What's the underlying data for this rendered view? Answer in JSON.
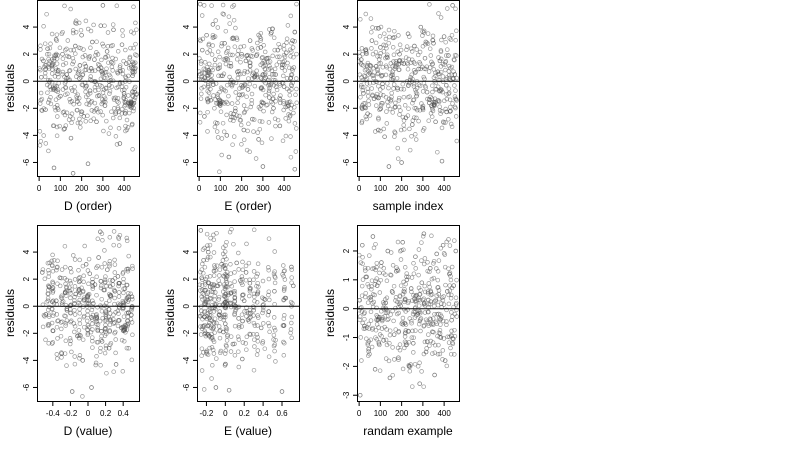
{
  "chart_data": [
    {
      "type": "scatter",
      "xlabel": "D (order)",
      "ylabel": "residuals",
      "xlim": [
        -10,
        470
      ],
      "ylim": [
        -7,
        6
      ],
      "xticks": [
        0,
        100,
        200,
        300,
        400
      ],
      "yticks": [
        -6,
        -4,
        -2,
        0,
        2,
        4
      ],
      "hline": 0,
      "n_points": 460,
      "point_style": "open circle",
      "points": [
        [
          10,
          0.3
        ],
        [
          20,
          1.5
        ],
        [
          30,
          -2.1
        ],
        [
          40,
          2.4
        ],
        [
          50,
          -0.4
        ],
        [
          60,
          1.2
        ],
        [
          70,
          -6.4
        ],
        [
          80,
          3.1
        ],
        [
          90,
          0.8
        ],
        [
          100,
          -1.1
        ],
        [
          110,
          2.0
        ],
        [
          120,
          -3.5
        ],
        [
          130,
          0.5
        ],
        [
          140,
          1.8
        ],
        [
          150,
          -4.2
        ],
        [
          160,
          -6.8
        ],
        [
          170,
          2.6
        ],
        [
          180,
          -1.5
        ],
        [
          190,
          0.2
        ],
        [
          200,
          3.4
        ],
        [
          210,
          -2.6
        ],
        [
          220,
          1.1
        ],
        [
          230,
          -6.1
        ],
        [
          240,
          -0.7
        ],
        [
          250,
          2.9
        ],
        [
          260,
          1.6
        ],
        [
          270,
          -3.0
        ],
        [
          280,
          0.9
        ],
        [
          290,
          4.1
        ],
        [
          300,
          5.6
        ],
        [
          310,
          -1.8
        ],
        [
          320,
          2.2
        ],
        [
          330,
          -0.3
        ],
        [
          340,
          1.4
        ],
        [
          350,
          3.8
        ],
        [
          360,
          -2.4
        ],
        [
          370,
          0.6
        ],
        [
          380,
          -4.6
        ],
        [
          390,
          2.7
        ],
        [
          400,
          -0.9
        ],
        [
          410,
          1.3
        ],
        [
          420,
          -1.6
        ],
        [
          430,
          -1.7
        ],
        [
          440,
          0.4
        ],
        [
          450,
          -0.8
        ]
      ]
    },
    {
      "type": "scatter",
      "xlabel": "E (order)",
      "ylabel": "residuals",
      "xlim": [
        -10,
        470
      ],
      "ylim": [
        -7,
        6
      ],
      "xticks": [
        0,
        100,
        200,
        300,
        400
      ],
      "yticks": [
        -6,
        -4,
        -2,
        0,
        2,
        4
      ],
      "hline": 0,
      "n_points": 460,
      "point_style": "open circle",
      "points": [
        [
          5,
          5.7
        ],
        [
          15,
          2.3
        ],
        [
          25,
          -2.6
        ],
        [
          35,
          3.4
        ],
        [
          45,
          0.8
        ],
        [
          55,
          -1.4
        ],
        [
          65,
          4.2
        ],
        [
          75,
          1.6
        ],
        [
          85,
          -3.1
        ],
        [
          95,
          -1.7
        ],
        [
          100,
          -1.5
        ],
        [
          110,
          0.4
        ],
        [
          120,
          2.8
        ],
        [
          130,
          -4.0
        ],
        [
          140,
          -5.6
        ],
        [
          150,
          1.1
        ],
        [
          160,
          3.2
        ],
        [
          170,
          -2.2
        ],
        [
          180,
          0.7
        ],
        [
          190,
          -1.0
        ],
        [
          200,
          2.0
        ],
        [
          210,
          -3.6
        ],
        [
          220,
          1.5
        ],
        [
          230,
          -0.6
        ],
        [
          240,
          3.0
        ],
        [
          250,
          -2.8
        ],
        [
          260,
          0.3
        ],
        [
          270,
          1.9
        ],
        [
          280,
          -4.3
        ],
        [
          290,
          2.5
        ],
        [
          300,
          -6.3
        ],
        [
          310,
          0.9
        ],
        [
          320,
          1.7
        ],
        [
          330,
          -1.2
        ],
        [
          340,
          3.6
        ],
        [
          350,
          -2.0
        ],
        [
          360,
          0.5
        ],
        [
          370,
          2.3
        ],
        [
          380,
          -3.3
        ],
        [
          390,
          1.0
        ],
        [
          400,
          -0.4
        ],
        [
          410,
          2.1
        ],
        [
          420,
          -1.8
        ],
        [
          430,
          0.2
        ],
        [
          440,
          3.0
        ],
        [
          450,
          -6.5
        ]
      ]
    },
    {
      "type": "scatter",
      "xlabel": "sample index",
      "ylabel": "residuals",
      "xlim": [
        -10,
        470
      ],
      "ylim": [
        -7,
        6
      ],
      "xticks": [
        0,
        100,
        200,
        300,
        400
      ],
      "yticks": [
        -6,
        -4,
        -2,
        0,
        2,
        4
      ],
      "hline": 0,
      "n_points": 460,
      "point_style": "open circle",
      "points": [
        [
          10,
          1.6
        ],
        [
          20,
          -0.9
        ],
        [
          30,
          2.3
        ],
        [
          40,
          -2.4
        ],
        [
          50,
          0.6
        ],
        [
          60,
          3.0
        ],
        [
          70,
          -1.3
        ],
        [
          80,
          1.1
        ],
        [
          90,
          -3.6
        ],
        [
          100,
          2.5
        ],
        [
          110,
          -0.2
        ],
        [
          120,
          -4.1
        ],
        [
          130,
          1.8
        ],
        [
          140,
          -6.3
        ],
        [
          150,
          0.4
        ],
        [
          160,
          3.2
        ],
        [
          170,
          -1.9
        ],
        [
          180,
          -0.5
        ],
        [
          190,
          2.0
        ],
        [
          200,
          -6.0
        ],
        [
          210,
          1.3
        ],
        [
          220,
          -2.7
        ],
        [
          230,
          3.5
        ],
        [
          240,
          0.1
        ],
        [
          250,
          -3.2
        ],
        [
          260,
          2.6
        ],
        [
          270,
          -1.1
        ],
        [
          280,
          0.9
        ],
        [
          290,
          4.0
        ],
        [
          300,
          -2.0
        ],
        [
          310,
          1.7
        ],
        [
          320,
          -0.8
        ],
        [
          330,
          -1.6
        ],
        [
          340,
          -1.8
        ],
        [
          350,
          2.8
        ],
        [
          360,
          -3.0
        ],
        [
          370,
          0.7
        ],
        [
          380,
          1.5
        ],
        [
          390,
          -5.9
        ],
        [
          400,
          3.3
        ],
        [
          410,
          -0.3
        ],
        [
          420,
          1.9
        ],
        [
          430,
          -2.2
        ],
        [
          440,
          5.6
        ],
        [
          450,
          0.5
        ]
      ]
    },
    {
      "type": "scatter",
      "xlabel": "D (value)",
      "ylabel": "residuals",
      "xlim": [
        -0.58,
        0.58
      ],
      "ylim": [
        -7,
        6
      ],
      "xticks": [
        -0.4,
        -0.2,
        0.0,
        0.2,
        0.4
      ],
      "yticks": [
        -6,
        -4,
        -2,
        0,
        2,
        4
      ],
      "hline": 0,
      "n_points": 460,
      "point_style": "open circle",
      "points": [
        [
          -0.52,
          2.5
        ],
        [
          -0.48,
          -0.6
        ],
        [
          -0.44,
          1.4
        ],
        [
          -0.4,
          -1.8
        ],
        [
          -0.36,
          0.4
        ],
        [
          -0.32,
          2.1
        ],
        [
          -0.3,
          -3.5
        ],
        [
          -0.26,
          1.0
        ],
        [
          -0.24,
          -0.3
        ],
        [
          -0.2,
          2.8
        ],
        [
          -0.18,
          -6.3
        ],
        [
          -0.14,
          0.9
        ],
        [
          -0.12,
          -2.2
        ],
        [
          -0.1,
          1.8
        ],
        [
          -0.06,
          -4.0
        ],
        [
          -0.04,
          0.5
        ],
        [
          -0.02,
          3.1
        ],
        [
          0.0,
          -1.4
        ],
        [
          0.02,
          2.4
        ],
        [
          0.04,
          -6.0
        ],
        [
          0.06,
          0.2
        ],
        [
          0.08,
          1.6
        ],
        [
          0.1,
          -0.8
        ],
        [
          0.12,
          3.6
        ],
        [
          0.14,
          5.5
        ],
        [
          0.16,
          -2.6
        ],
        [
          0.18,
          1.2
        ],
        [
          0.2,
          -0.4
        ],
        [
          0.22,
          2.7
        ],
        [
          0.24,
          -3.1
        ],
        [
          0.26,
          0.8
        ],
        [
          0.28,
          1.9
        ],
        [
          0.3,
          -1.2
        ],
        [
          0.32,
          -4.3
        ],
        [
          0.34,
          2.2
        ],
        [
          0.36,
          0.1
        ],
        [
          0.38,
          -1.6
        ],
        [
          0.4,
          -1.8
        ],
        [
          0.42,
          1.3
        ],
        [
          0.46,
          -0.5
        ],
        [
          0.5,
          0.7
        ]
      ]
    },
    {
      "type": "scatter",
      "xlabel": "E (value)",
      "ylabel": "residuals",
      "xlim": [
        -0.3,
        0.78
      ],
      "ylim": [
        -7,
        6
      ],
      "xticks": [
        -0.2,
        0.0,
        0.2,
        0.4,
        0.6
      ],
      "yticks": [
        -6,
        -4,
        -2,
        0,
        2,
        4
      ],
      "hline": 0,
      "n_points": 460,
      "point_style": "open circle",
      "points": [
        [
          -0.26,
          5.6
        ],
        [
          -0.25,
          2.1
        ],
        [
          -0.24,
          -1.5
        ],
        [
          -0.23,
          3.4
        ],
        [
          -0.22,
          -0.8
        ],
        [
          -0.21,
          1.2
        ],
        [
          -0.2,
          -3.4
        ],
        [
          -0.18,
          4.0
        ],
        [
          -0.16,
          0.6
        ],
        [
          -0.14,
          -2.3
        ],
        [
          -0.12,
          2.6
        ],
        [
          -0.1,
          -6.0
        ],
        [
          -0.08,
          1.5
        ],
        [
          -0.06,
          -0.4
        ],
        [
          -0.04,
          3.1
        ],
        [
          -0.02,
          -1.9
        ],
        [
          0.0,
          0.3
        ],
        [
          0.0,
          -1.3
        ],
        [
          0.02,
          2.2
        ],
        [
          0.04,
          -6.2
        ],
        [
          0.06,
          1.0
        ],
        [
          0.08,
          -2.8
        ],
        [
          0.1,
          0.6
        ],
        [
          0.12,
          3.2
        ],
        [
          0.14,
          -0.9
        ],
        [
          0.16,
          1.9
        ],
        [
          0.18,
          -3.9
        ],
        [
          0.2,
          0.4
        ],
        [
          0.22,
          2.5
        ],
        [
          0.24,
          -1.0
        ],
        [
          0.26,
          1.7
        ],
        [
          0.3,
          -0.3
        ],
        [
          0.34,
          0.9
        ],
        [
          0.38,
          -1.6
        ],
        [
          0.42,
          0.5
        ],
        [
          0.46,
          -0.4
        ],
        [
          0.52,
          1.1
        ],
        [
          0.6,
          -6.3
        ],
        [
          0.64,
          0.6
        ],
        [
          0.7,
          2.9
        ],
        [
          0.72,
          1.5
        ]
      ]
    },
    {
      "type": "scatter",
      "xlabel": "randam example",
      "ylabel": "residuals",
      "xlim": [
        -10,
        470
      ],
      "ylim": [
        -3.2,
        2.9
      ],
      "xticks": [
        0,
        100,
        200,
        300,
        400
      ],
      "yticks": [
        -3,
        -2,
        -1,
        0,
        1,
        2
      ],
      "hline": 0,
      "n_points": 460,
      "point_style": "open circle",
      "points": [
        [
          5,
          -3.0
        ],
        [
          15,
          2.2
        ],
        [
          25,
          -0.6
        ],
        [
          35,
          1.1
        ],
        [
          45,
          -1.4
        ],
        [
          55,
          0.4
        ],
        [
          65,
          2.5
        ],
        [
          75,
          -2.1
        ],
        [
          85,
          0.8
        ],
        [
          95,
          -0.3
        ],
        [
          105,
          1.6
        ],
        [
          115,
          -1.1
        ],
        [
          125,
          0.2
        ],
        [
          135,
          2.0
        ],
        [
          145,
          -2.4
        ],
        [
          155,
          0.6
        ],
        [
          165,
          -0.9
        ],
        [
          175,
          1.3
        ],
        [
          185,
          -1.7
        ],
        [
          195,
          0.1
        ],
        [
          205,
          2.3
        ],
        [
          215,
          -0.5
        ],
        [
          225,
          1.0
        ],
        [
          235,
          -2.0
        ],
        [
          245,
          0.7
        ],
        [
          255,
          -1.2
        ],
        [
          265,
          1.8
        ],
        [
          275,
          -0.2
        ],
        [
          285,
          -2.6
        ],
        [
          295,
          0.9
        ],
        [
          305,
          2.6
        ],
        [
          315,
          -1.5
        ],
        [
          325,
          0.3
        ],
        [
          335,
          1.4
        ],
        [
          345,
          -0.8
        ],
        [
          355,
          -2.3
        ],
        [
          365,
          1.9
        ],
        [
          375,
          0.5
        ],
        [
          385,
          -1.0
        ],
        [
          395,
          2.2
        ],
        [
          405,
          -1.8
        ],
        [
          415,
          0.6
        ],
        [
          425,
          1.2
        ],
        [
          435,
          -0.4
        ],
        [
          445,
          0.8
        ],
        [
          455,
          2.0
        ]
      ]
    }
  ]
}
